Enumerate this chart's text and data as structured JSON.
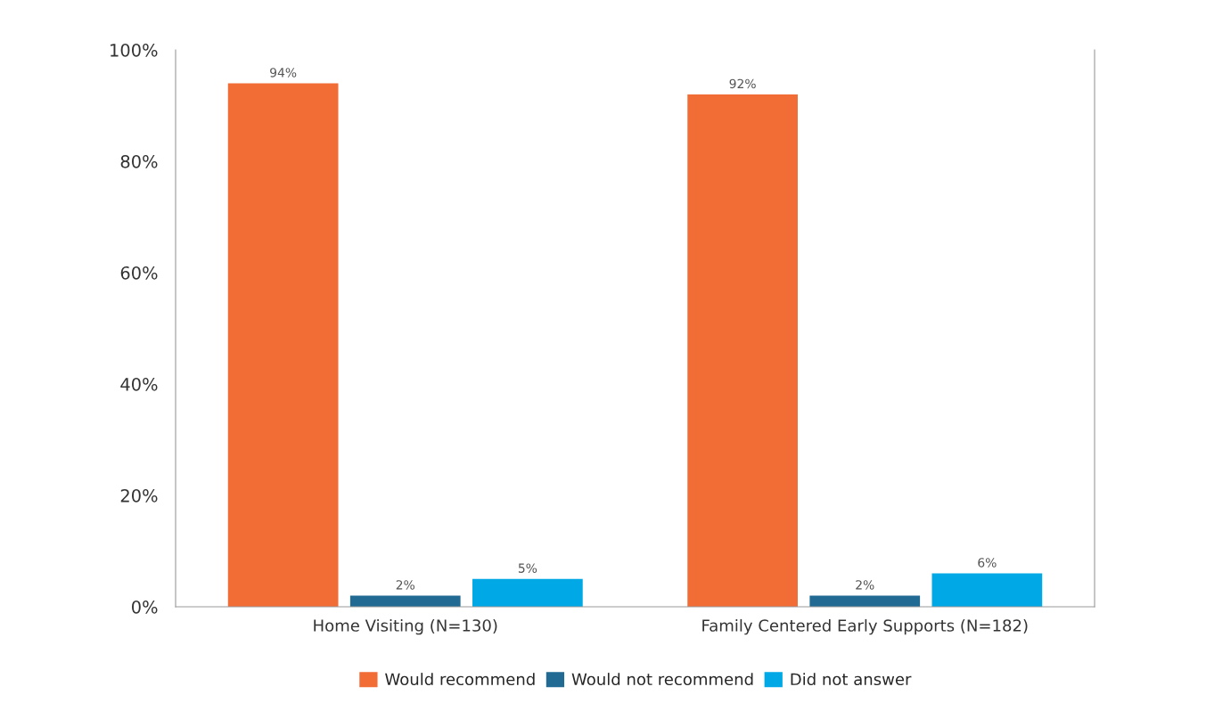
{
  "chart_data": {
    "type": "bar",
    "categories": [
      "Home Visiting (N=130)",
      "Family Centered Early Supports (N=182)"
    ],
    "series": [
      {
        "name": "Would recommend",
        "color": "#f26c36",
        "values": [
          94,
          92
        ],
        "value_labels": [
          "94%",
          "92%"
        ]
      },
      {
        "name": "Would not recommend",
        "color": "#216a94",
        "values": [
          2,
          2
        ],
        "value_labels": [
          "2%",
          "2%"
        ]
      },
      {
        "name": "Did not answer",
        "color": "#00a9e6",
        "values": [
          5,
          6
        ],
        "value_labels": [
          "5%",
          "6%"
        ]
      }
    ],
    "ylim": [
      0,
      100
    ],
    "yticks": [
      {
        "value": 0,
        "label": "0%"
      },
      {
        "value": 20,
        "label": "20%"
      },
      {
        "value": 40,
        "label": "40%"
      },
      {
        "value": 60,
        "label": "60%"
      },
      {
        "value": 80,
        "label": "80%"
      },
      {
        "value": 100,
        "label": "100%"
      }
    ],
    "grid": false,
    "legend": "bottom"
  }
}
